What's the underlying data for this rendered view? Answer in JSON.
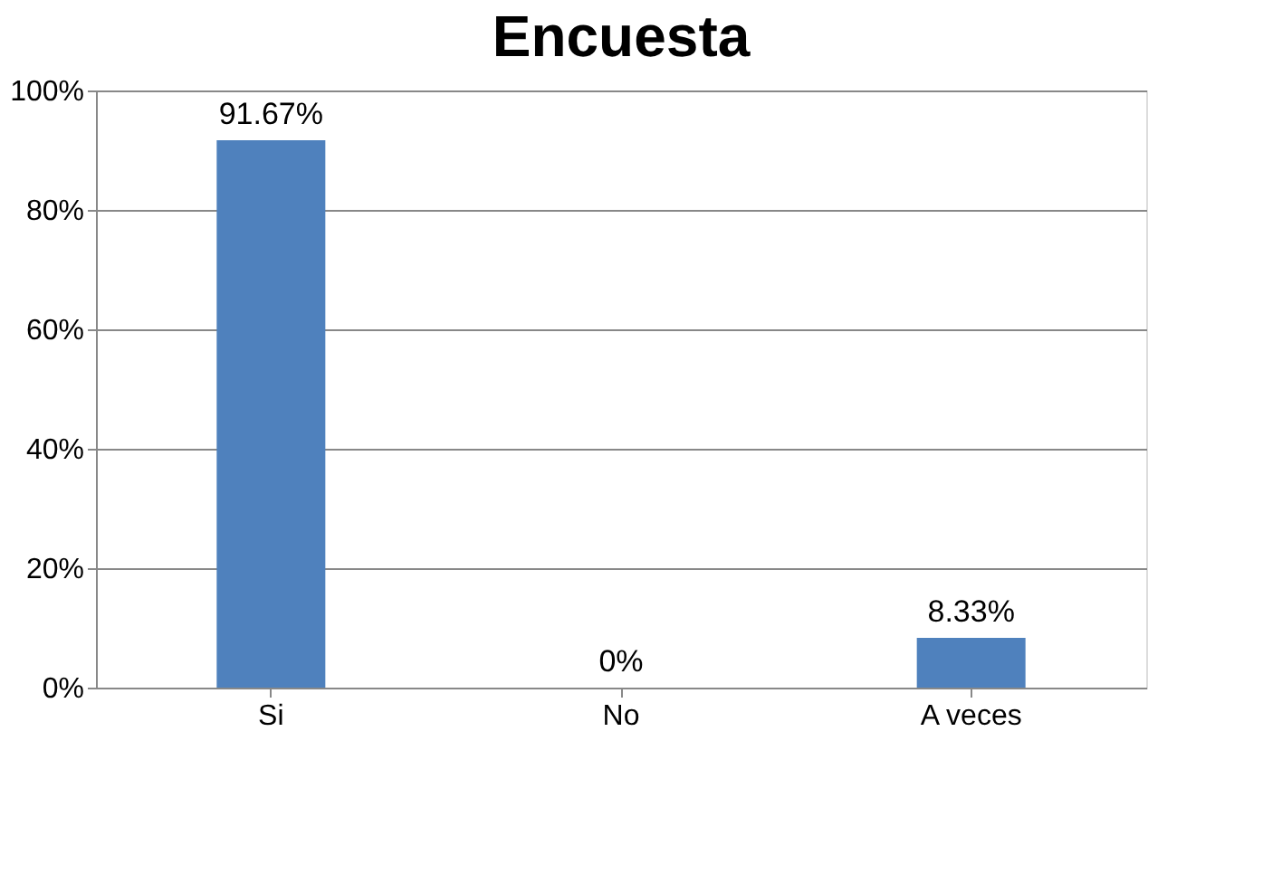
{
  "chart_data": {
    "type": "bar",
    "title": "Encuesta",
    "categories": [
      "Si",
      "No",
      "A veces"
    ],
    "values": [
      91.67,
      0,
      8.33
    ],
    "value_labels": [
      "91.67%",
      "0%",
      "8.33%"
    ],
    "color": "#4f81bd",
    "ylim": [
      0,
      100
    ],
    "yticks": [
      {
        "value": 0,
        "label": "0%"
      },
      {
        "value": 20,
        "label": "20%"
      },
      {
        "value": 40,
        "label": "40%"
      },
      {
        "value": 60,
        "label": "60%"
      },
      {
        "value": 80,
        "label": "80%"
      },
      {
        "value": 100,
        "label": "100%"
      }
    ],
    "grid": "y"
  }
}
